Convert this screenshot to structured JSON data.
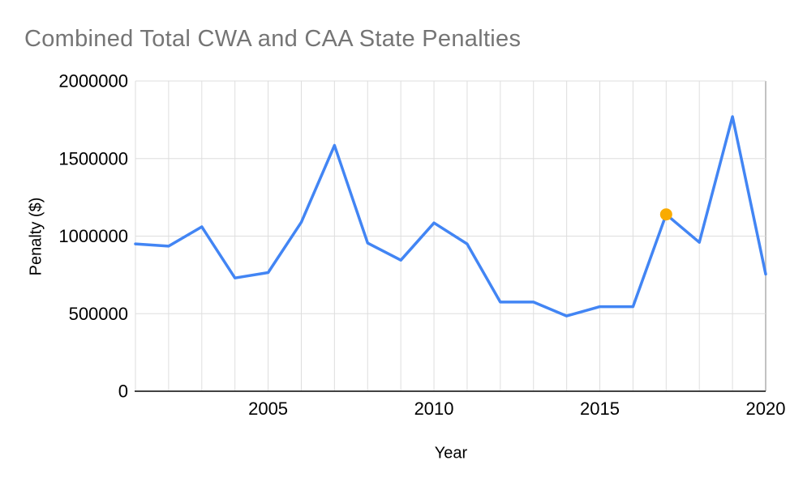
{
  "title": "Combined Total CWA and CAA State Penalties",
  "colors": {
    "title_text": "#757575",
    "line": "#4285F4",
    "highlight_dot": "#F9AB00",
    "grid": "#DEDEDE",
    "plot_right_border": "#C2C2C2",
    "axis_line": "#424242",
    "tick_text": "#000000"
  },
  "chart_data": {
    "type": "line",
    "title": "Combined Total CWA and CAA State Penalties",
    "xlabel": "Year",
    "ylabel": "Penalty ($)",
    "x": [
      2001,
      2002,
      2003,
      2004,
      2005,
      2006,
      2007,
      2008,
      2009,
      2010,
      2011,
      2012,
      2013,
      2014,
      2015,
      2016,
      2017,
      2018,
      2019,
      2020
    ],
    "values": [
      950000,
      935000,
      1060000,
      730000,
      765000,
      1090000,
      1585000,
      955000,
      845000,
      1085000,
      950000,
      575000,
      575000,
      485000,
      545000,
      545000,
      1140000,
      960000,
      1770000,
      755000
    ],
    "xlim": [
      2001,
      2020
    ],
    "ylim": [
      0,
      2000000
    ],
    "x_ticks": [
      2005,
      2010,
      2015,
      2020
    ],
    "y_ticks": [
      0,
      500000,
      1000000,
      1500000,
      2000000
    ],
    "grid": true,
    "legend": "none",
    "highlight_point": {
      "x": 2017,
      "y": 1140000
    }
  }
}
